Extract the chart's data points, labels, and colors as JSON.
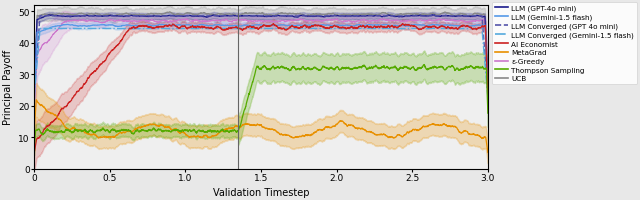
{
  "xlabel": "Validation Timestep",
  "ylabel": "Principal Payoff",
  "xlim": [
    0,
    3000000
  ],
  "ylim": [
    0,
    52
  ],
  "yticks": [
    0,
    10,
    20,
    30,
    40,
    50
  ],
  "xtick_labels": [
    "0",
    "0.5",
    "1.0",
    "1.5",
    "2.0",
    "2.5",
    "3.0"
  ],
  "xtick_vals": [
    0,
    500000,
    1000000,
    1500000,
    2000000,
    2500000,
    3000000
  ],
  "legend_entries": [
    {
      "label": "LLM (GPT-4o mini)",
      "color": "#1a1a8c",
      "linestyle": "solid",
      "lw": 1.2
    },
    {
      "label": "LLM (Gemini-1.5 flash)",
      "color": "#5599e8",
      "linestyle": "solid",
      "lw": 1.2
    },
    {
      "label": "LLM Converged (GPT 4o mini)",
      "color": "#5555aa",
      "linestyle": "dashed",
      "lw": 1.2
    },
    {
      "label": "LLM Converged (Gemini-1.5 flash)",
      "color": "#55aadd",
      "linestyle": "dashdot",
      "lw": 1.2
    },
    {
      "label": "AI Economist",
      "color": "#cc2222",
      "linestyle": "solid",
      "lw": 1.2
    },
    {
      "label": "MetaGrad",
      "color": "#e89000",
      "linestyle": "solid",
      "lw": 1.2
    },
    {
      "label": "ε-Greedy",
      "color": "#cc77cc",
      "linestyle": "solid",
      "lw": 1.2
    },
    {
      "label": "Thompson Sampling",
      "color": "#55aa00",
      "linestyle": "solid",
      "lw": 1.2
    },
    {
      "label": "UCB",
      "color": "#888888",
      "linestyle": "solid",
      "lw": 1.2
    }
  ],
  "background_color": "#e8e8e8",
  "figsize": [
    6.4,
    2.01
  ],
  "dpi": 100,
  "seed": 42,
  "phase_change_x": 1350000
}
